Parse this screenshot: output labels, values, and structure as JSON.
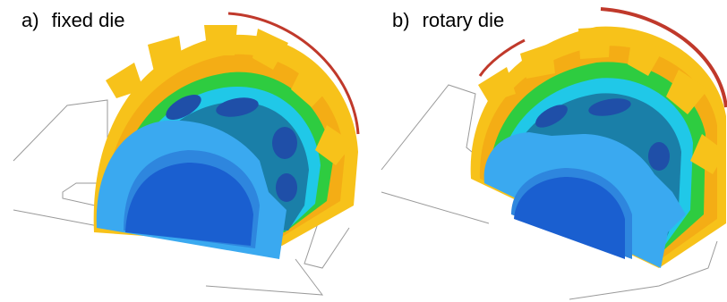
{
  "panels": [
    {
      "letter": "a)",
      "title": "fixed die"
    },
    {
      "letter": "b)",
      "title": "rotary die"
    }
  ],
  "colors": {
    "outline": "#9a9a9a",
    "red": "#c0392b",
    "orange": "#f39c12",
    "yellow": "#f7c21a",
    "green": "#2ecc40",
    "cyan": "#20c8e8",
    "teal": "#1a7fa8",
    "blue_dark": "#1f4fa8",
    "blue_mid": "#2e86de",
    "blue_core": "#1a5fd0",
    "blue_light": "#3aa9f0"
  },
  "icons": [
    "tooth-icon"
  ]
}
